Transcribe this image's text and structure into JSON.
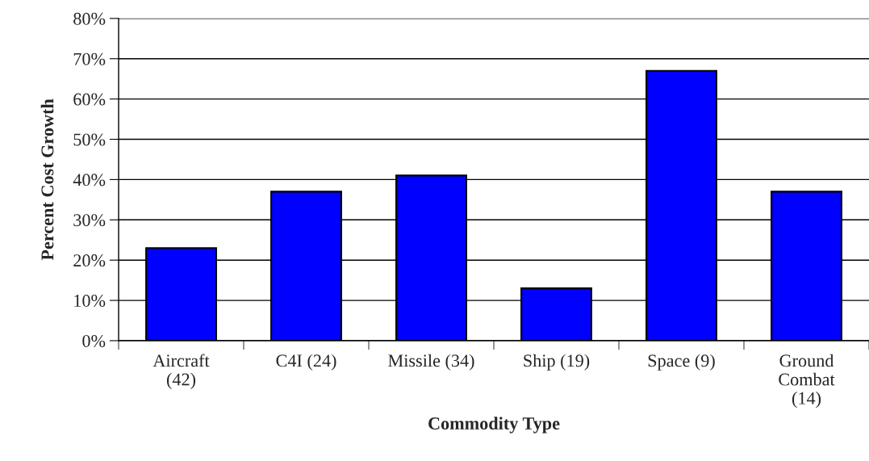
{
  "chart_data": {
    "type": "bar",
    "xlabel": "Commodity Type",
    "ylabel": "Percent Cost Growth",
    "categories": [
      "Aircraft\n(42)",
      "C4I (24)",
      "Missile (34)",
      "Ship (19)",
      "Space (9)",
      "Ground\nCombat\n(14)"
    ],
    "values": [
      23,
      37,
      41,
      13,
      67,
      37
    ],
    "color": "#0000ff",
    "ylim": [
      0,
      80
    ],
    "yticks": [
      {
        "value": 0,
        "label": "0%"
      },
      {
        "value": 10,
        "label": "10%"
      },
      {
        "value": 20,
        "label": "20%"
      },
      {
        "value": 30,
        "label": "30%"
      },
      {
        "value": 40,
        "label": "40%"
      },
      {
        "value": 50,
        "label": "50%"
      },
      {
        "value": 60,
        "label": "60%"
      },
      {
        "value": 70,
        "label": "70%"
      },
      {
        "value": 80,
        "label": "80%"
      }
    ],
    "grid": "y",
    "legend": false
  }
}
